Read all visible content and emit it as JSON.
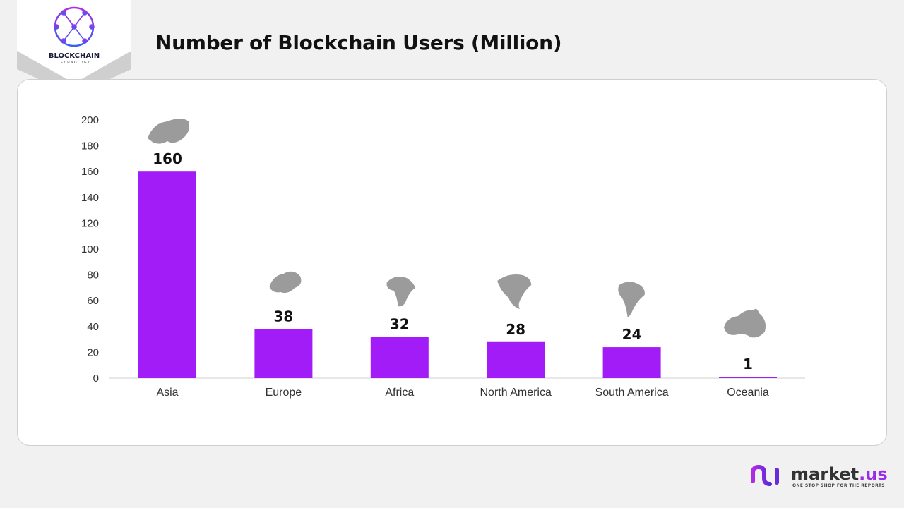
{
  "header": {
    "title": "Number of Blockchain Users (Million)"
  },
  "badge": {
    "name": "BLOCKCHAIN",
    "sub": "TECHNOLOGY"
  },
  "brand": {
    "name": "market",
    "tld": ".us",
    "tagline": "ONE STOP SHOP FOR THE REPORTS"
  },
  "chart_data": {
    "type": "bar",
    "title": "Number of Blockchain Users (Million)",
    "categories": [
      "Asia",
      "Europe",
      "Africa",
      "North America",
      "South America",
      "Oceania"
    ],
    "values": [
      160,
      38,
      32,
      28,
      24,
      1
    ],
    "data_labels": [
      "160",
      "38",
      "32",
      "28",
      "24",
      "1"
    ],
    "icons": [
      "asia-map-icon",
      "europe-map-icon",
      "africa-map-icon",
      "north-america-map-icon",
      "south-america-map-icon",
      "oceania-map-icon"
    ],
    "ylim": [
      0,
      200
    ],
    "yticks": [
      "0",
      "20",
      "40",
      "60",
      "80",
      "100",
      "120",
      "140",
      "160",
      "180",
      "200"
    ],
    "grid": false,
    "bar_color": "#a21cf7",
    "icon_color": "#9b9b9b"
  }
}
